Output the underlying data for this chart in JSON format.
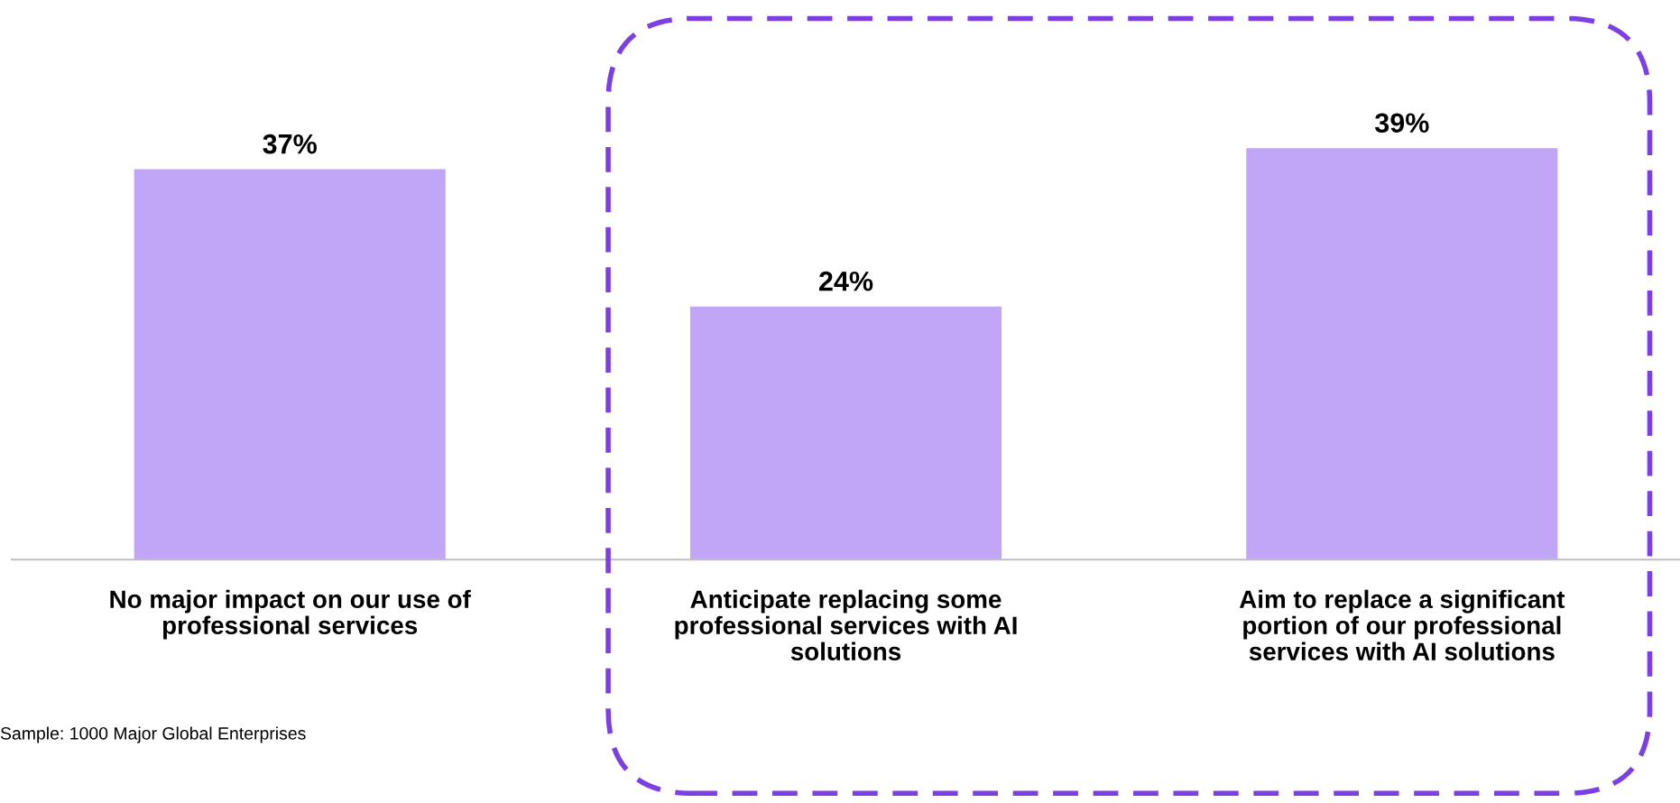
{
  "chart_data": {
    "type": "bar",
    "categories": [
      "No major impact on our use of\nprofessional services",
      "Anticipate replacing some\nprofessional services with AI\nsolutions",
      "Aim to replace a significant\nportion of our professional\nservices with AI solutions"
    ],
    "values": [
      37,
      24,
      39
    ],
    "color": "#c1a6f8",
    "data_labels": true,
    "grid": false,
    "legend": false,
    "tick_labels": "x",
    "value_labels": [
      "37%",
      "24%",
      "39%"
    ],
    "annotations": [
      "Sample: 1000 Major Global Enterprises"
    ]
  }
}
